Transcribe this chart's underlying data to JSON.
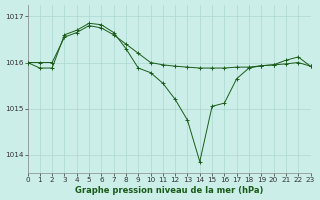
{
  "title": "Graphe pression niveau de la mer (hPa)",
  "bg_color": "#cceee8",
  "line_color": "#1a5c1a",
  "grid_color": "#aad8d0",
  "line1": {
    "x": [
      0,
      1,
      2,
      3,
      4,
      5,
      6,
      7,
      8,
      9,
      10,
      11,
      12,
      13,
      14,
      15,
      16,
      17,
      18,
      19,
      20,
      21,
      22,
      23
    ],
    "y": [
      1016.0,
      1016.0,
      1016.0,
      1016.55,
      1016.65,
      1016.8,
      1016.75,
      1016.6,
      1016.4,
      1016.2,
      1016.0,
      1015.95,
      1015.92,
      1015.9,
      1015.88,
      1015.88,
      1015.88,
      1015.9,
      1015.9,
      1015.93,
      1015.95,
      1015.97,
      1016.0,
      1015.92
    ]
  },
  "line2": {
    "x": [
      0,
      1,
      2,
      3,
      4,
      5,
      6,
      7,
      8,
      9,
      10,
      11,
      12,
      13,
      14,
      15,
      16,
      17,
      18,
      19,
      20,
      21,
      22,
      23
    ],
    "y": [
      1016.0,
      1015.88,
      1015.88,
      1016.6,
      1016.7,
      1016.85,
      1016.82,
      1016.65,
      1016.3,
      1015.88,
      1015.78,
      1015.55,
      1015.2,
      1014.75,
      1013.85,
      1015.05,
      1015.12,
      1015.65,
      1015.88,
      1015.93,
      1015.95,
      1016.05,
      1016.12,
      1015.92
    ]
  },
  "xlim": [
    0,
    23
  ],
  "ylim": [
    1013.6,
    1017.25
  ],
  "yticks": [
    1014,
    1015,
    1016,
    1017
  ],
  "xticks": [
    0,
    1,
    2,
    3,
    4,
    5,
    6,
    7,
    8,
    9,
    10,
    11,
    12,
    13,
    14,
    15,
    16,
    17,
    18,
    19,
    20,
    21,
    22,
    23
  ],
  "xlabel_fontsize": 6.0,
  "tick_fontsize": 5.2
}
